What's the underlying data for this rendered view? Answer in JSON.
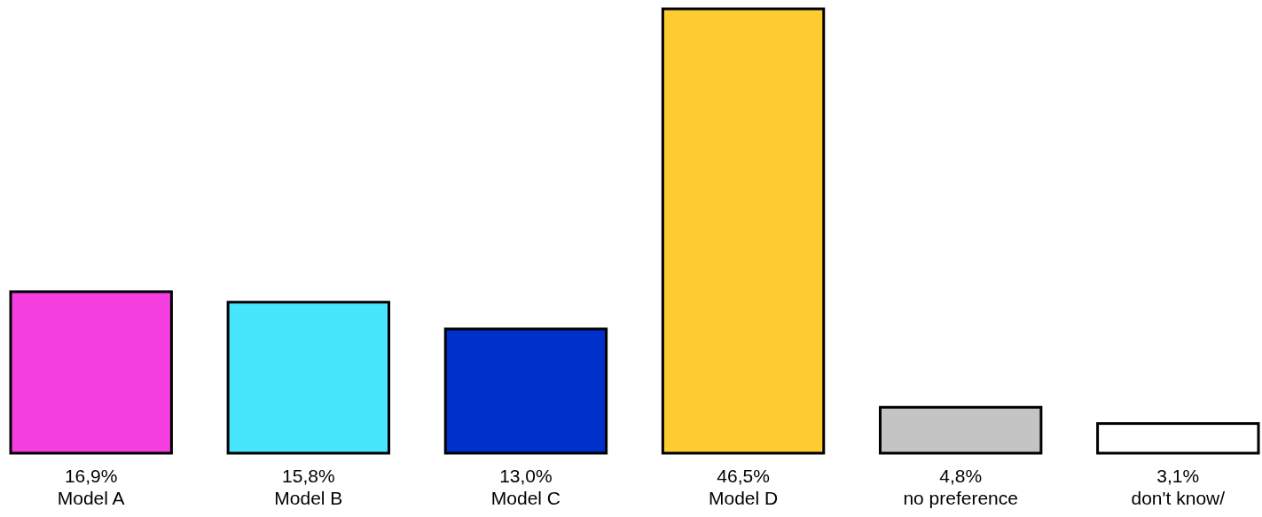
{
  "chart_data": {
    "type": "bar",
    "categories": [
      "Model A",
      "Model B",
      "Model C",
      "Model D",
      "no preference",
      "don't know/"
    ],
    "values": [
      16.9,
      15.8,
      13.0,
      46.5,
      4.8,
      3.1
    ],
    "colors": [
      "#f53ee0",
      "#48e6fc",
      "#0030cc",
      "#fccc30",
      "#c4c4c4",
      "#ffffff"
    ],
    "value_labels": [
      "16,9%",
      "15,8%",
      "13,0%",
      "46,5%",
      "4,8%",
      "3,1%"
    ]
  }
}
